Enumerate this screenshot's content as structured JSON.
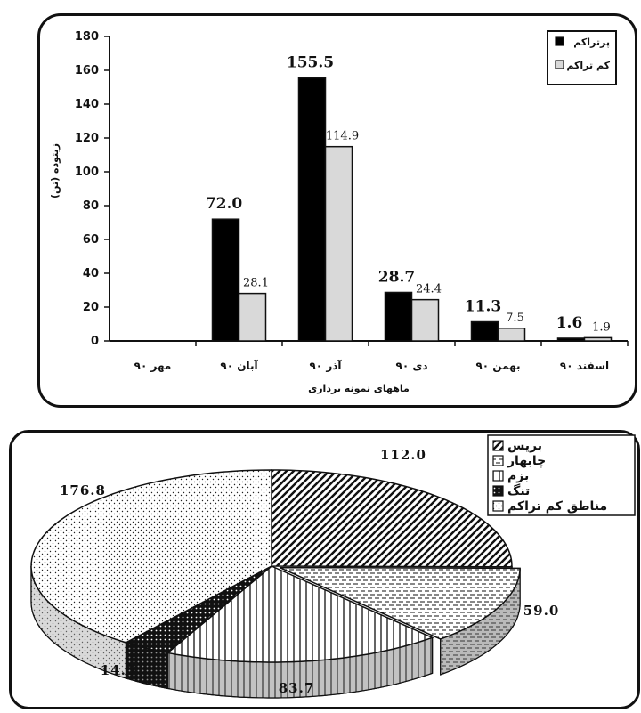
{
  "chart_data": [
    {
      "type": "bar",
      "categories": [
        "مهر ۹۰",
        "آبان ۹۰",
        "آذر ۹۰",
        "دی ۹۰",
        "بهمن ۹۰",
        "اسفند ۹۰"
      ],
      "series": [
        {
          "name": "پرتراکم",
          "color": "#000000",
          "values": [
            0,
            72.0,
            155.5,
            28.7,
            11.3,
            1.6
          ],
          "labels": [
            "",
            "72.0",
            "155.5",
            "28.7",
            "11.3",
            "1.6"
          ]
        },
        {
          "name": "کم تراکم",
          "color": "#d9d9d9",
          "values": [
            0,
            28.1,
            114.9,
            24.4,
            7.5,
            1.9
          ],
          "labels": [
            "",
            "28.1",
            "114.9",
            "24.4",
            "7.5",
            "1.9"
          ]
        }
      ],
      "xlabel": "ماههای نمونه برداری",
      "ylabel": "زیتوده (تن)",
      "ylim": [
        0,
        180
      ],
      "yticks": [
        0,
        20,
        40,
        60,
        80,
        100,
        120,
        140,
        160,
        180
      ],
      "legend_position": "top-right",
      "grid": false
    },
    {
      "type": "pie",
      "style": "3d-exploded",
      "slices": [
        {
          "name": "بریس",
          "value": 112.0,
          "label": "112.0",
          "pattern": "diagonal"
        },
        {
          "name": "چابهار",
          "value": 59.0,
          "label": "59.0",
          "pattern": "horizontal-dash"
        },
        {
          "name": "بزم",
          "value": 83.7,
          "label": "83.7",
          "pattern": "vertical"
        },
        {
          "name": "تنگ",
          "value": 14.5,
          "label": "14.5",
          "pattern": "dark-dots"
        },
        {
          "name": "مناطق کم تراکم",
          "value": 176.8,
          "label": "176.8",
          "pattern": "light-dots"
        }
      ],
      "legend_position": "top-right"
    }
  ]
}
